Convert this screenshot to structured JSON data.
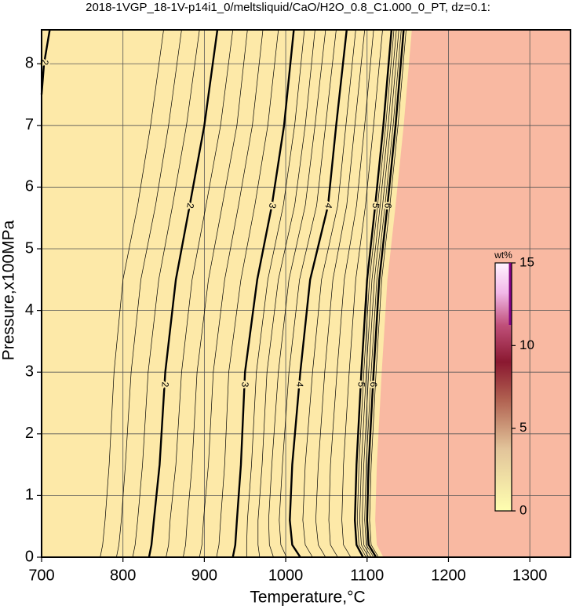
{
  "chart_data": {
    "type": "contour",
    "title": "2018-1VGP_18-1V-p14i1_0/meltsliquid/CaO/H2O_0.8_C1.000_0_PT, dz=0.1:",
    "xlabel": "Temperature,°C",
    "ylabel": "Pressure,x100MPa",
    "xlim": [
      700,
      1350
    ],
    "ylim": [
      0,
      8.55
    ],
    "xticks": [
      700,
      800,
      900,
      1000,
      1100,
      1200,
      1300
    ],
    "yticks": [
      0,
      1,
      2,
      3,
      4,
      5,
      6,
      7,
      8
    ],
    "grid": true,
    "fill_color": "#fde9a8",
    "region_color": "#f9b9a2",
    "line_color": "#000000",
    "y": [
      0,
      0.2,
      0.6,
      1.5,
      3,
      4.5,
      5.7,
      7,
      8.55
    ],
    "region_x": [
      1120,
      1112,
      1110,
      1112,
      1118,
      1125,
      1135,
      1145,
      1155
    ],
    "contours": [
      {
        "level": 1.4,
        "x": [
          772,
          775,
          778,
          783,
          789,
          800,
          818,
          834,
          850
        ]
      },
      {
        "level": 1.6,
        "x": [
          792,
          795,
          798,
          803,
          810,
          822,
          840,
          856,
          872
        ]
      },
      {
        "level": 1.8,
        "x": [
          812,
          815,
          818,
          824,
          831,
          844,
          861,
          878,
          894
        ]
      },
      {
        "level": 2,
        "x": [
          832,
          835,
          838,
          845,
          852,
          865,
          882,
          900,
          916
        ]
      },
      {
        "level": 2,
        "x": [
          700,
          703,
          710
        ],
        "y": [
          7.5,
          8,
          8.55
        ]
      },
      {
        "level": 2.2,
        "x": [
          853,
          856,
          858,
          865,
          872,
          885,
          902,
          920,
          935
        ]
      },
      {
        "level": 2.4,
        "x": [
          874,
          877,
          879,
          885,
          891,
          905,
          922,
          940,
          953
        ]
      },
      {
        "level": 2.6,
        "x": [
          894,
          897,
          899,
          905,
          911,
          925,
          942,
          959,
          972
        ]
      },
      {
        "level": 2.8,
        "x": [
          915,
          918,
          920,
          925,
          930,
          945,
          962,
          978,
          991
        ]
      },
      {
        "level": 3,
        "x": [
          935,
          938,
          940,
          945,
          950,
          965,
          983,
          998,
          1010
        ]
      },
      {
        "level": 3.2,
        "x": [
          952,
          952,
          953,
          958,
          964,
          978,
          997,
          1011,
          1023
        ]
      },
      {
        "level": 3.4,
        "x": [
          968,
          966,
          966,
          971,
          977,
          991,
          1011,
          1024,
          1036
        ]
      },
      {
        "level": 3.6,
        "x": [
          985,
          980,
          979,
          983,
          991,
          1004,
          1024,
          1036,
          1049
        ]
      },
      {
        "level": 3.8,
        "x": [
          1001,
          994,
          992,
          996,
          1004,
          1017,
          1038,
          1049,
          1062
        ]
      },
      {
        "level": 4,
        "x": [
          1018,
          1008,
          1005,
          1008,
          1018,
          1030,
          1052,
          1062,
          1075
        ]
      },
      {
        "level": 4.2,
        "x": [
          1033,
          1024,
          1021,
          1024,
          1033,
          1044,
          1064,
          1074,
          1086
        ]
      },
      {
        "level": 4.4,
        "x": [
          1049,
          1040,
          1037,
          1040,
          1048,
          1058,
          1075,
          1085,
          1097
        ]
      },
      {
        "level": 4.6,
        "x": [
          1064,
          1055,
          1053,
          1055,
          1063,
          1072,
          1087,
          1097,
          1108
        ]
      },
      {
        "level": 4.8,
        "x": [
          1080,
          1071,
          1069,
          1071,
          1078,
          1086,
          1098,
          1108,
          1119
        ]
      },
      {
        "level": 5,
        "x": [
          1095,
          1087,
          1085,
          1087,
          1093,
          1100,
          1110,
          1120,
          1130
        ]
      },
      {
        "level": 5.2,
        "x": [
          1099,
          1090,
          1088,
          1090,
          1096,
          1103,
          1113,
          1123,
          1133
        ]
      },
      {
        "level": 5.4,
        "x": [
          1102,
          1093,
          1091,
          1093,
          1099,
          1106,
          1116,
          1126,
          1136
        ]
      },
      {
        "level": 5.6,
        "x": [
          1105,
          1096,
          1094,
          1096,
          1102,
          1109,
          1119,
          1129,
          1139
        ]
      },
      {
        "level": 5.8,
        "x": [
          1108,
          1099,
          1097,
          1099,
          1105,
          1112,
          1122,
          1132,
          1142
        ]
      },
      {
        "level": 6,
        "x": [
          1111,
          1102,
          1100,
          1102,
          1108,
          1115,
          1125,
          1135,
          1145
        ]
      },
      {
        "level": 6.2,
        "x": [
          1114,
          1105,
          1103,
          1105,
          1111,
          1118,
          1128,
          1138,
          1148
        ]
      }
    ],
    "colorbar": {
      "label": "wt%",
      "lim": [
        0,
        15
      ],
      "ticks": [
        0,
        5,
        10,
        15
      ]
    }
  }
}
